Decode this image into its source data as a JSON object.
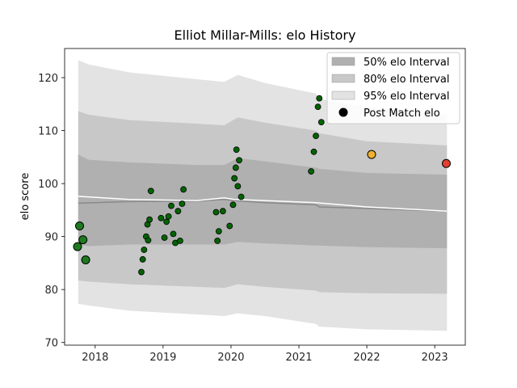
{
  "chart_data": {
    "type": "scatter",
    "title": "Elliot Millar-Mills: elo History",
    "xlabel": "",
    "ylabel": "elo score",
    "xlim": [
      2017.55,
      2023.45
    ],
    "ylim": [
      69.5,
      125.5
    ],
    "x_ticks": [
      2018,
      2019,
      2020,
      2021,
      2022,
      2023
    ],
    "y_ticks": [
      70,
      80,
      90,
      100,
      110,
      120
    ],
    "legend": {
      "position": "top-right",
      "entries": [
        {
          "label": "50% elo Interval",
          "color": "#b0b0b0"
        },
        {
          "label": "80% elo Interval",
          "color": "#c8c8c8"
        },
        {
          "label": "95% elo Interval",
          "color": "#e3e3e3"
        },
        {
          "label": "Post Match elo",
          "color": "#000000"
        }
      ]
    },
    "bands": {
      "x": [
        2017.75,
        2017.9,
        2018.5,
        2019.5,
        2019.9,
        2020.1,
        2020.5,
        2021.25,
        2021.3,
        2022.0,
        2023.18
      ],
      "p95": {
        "upper": [
          123.3,
          122.5,
          121.0,
          119.7,
          119.2,
          120.5,
          119.0,
          117.0,
          116.0,
          114.5,
          113.0
        ],
        "lower": [
          77.3,
          77.0,
          76.0,
          75.3,
          75.0,
          75.5,
          75.0,
          73.5,
          73.0,
          72.5,
          72.2
        ]
      },
      "p80": {
        "upper": [
          113.7,
          113.0,
          112.0,
          111.3,
          111.0,
          112.5,
          111.5,
          110.0,
          109.5,
          108.0,
          107.2
        ],
        "lower": [
          81.7,
          81.5,
          81.0,
          80.5,
          80.3,
          81.0,
          80.5,
          79.8,
          79.5,
          79.3,
          79.2
        ]
      },
      "p50": {
        "upper": [
          105.5,
          104.5,
          104.0,
          103.5,
          103.5,
          104.8,
          104.2,
          103.0,
          102.8,
          102.0,
          101.7
        ],
        "lower": [
          88.5,
          88.2,
          88.5,
          88.5,
          88.5,
          89.0,
          88.7,
          88.3,
          88.3,
          88.0,
          87.8
        ]
      }
    },
    "median": {
      "x": [
        2017.75,
        2018.5,
        2019.5,
        2019.9,
        2020.05,
        2020.5,
        2021.25,
        2021.3,
        2022.0,
        2023.18
      ],
      "y": [
        96.3,
        96.6,
        96.7,
        97.0,
        96.8,
        96.4,
        96.0,
        95.6,
        95.3,
        94.8
      ]
    },
    "mean_line": {
      "x": [
        2017.75,
        2018.5,
        2019.5,
        2019.9,
        2020.05,
        2020.5,
        2021.25,
        2022.0,
        2023.18
      ],
      "y": [
        97.6,
        97.0,
        96.8,
        97.3,
        97.0,
        96.8,
        96.4,
        95.6,
        94.8
      ]
    },
    "series": [
      {
        "name": "Post Match elo",
        "color": "#006400",
        "x": [
          2018.68,
          2018.7,
          2018.72,
          2018.75,
          2018.77,
          2018.78,
          2018.8,
          2018.82,
          2018.97,
          2019.02,
          2019.05,
          2019.08,
          2019.12,
          2019.15,
          2019.18,
          2019.22,
          2019.25,
          2019.28,
          2019.3,
          2019.78,
          2019.8,
          2019.82,
          2019.88,
          2019.98,
          2020.03,
          2020.05,
          2020.07,
          2020.08,
          2020.1,
          2020.12,
          2020.15,
          2021.18,
          2021.22,
          2021.25,
          2021.28,
          2021.3,
          2021.33
        ],
        "y": [
          83.3,
          85.7,
          87.5,
          90.0,
          92.3,
          89.3,
          93.2,
          98.6,
          93.5,
          89.8,
          92.8,
          93.8,
          95.8,
          90.5,
          88.8,
          94.8,
          89.2,
          96.2,
          98.9,
          94.6,
          89.2,
          91.0,
          94.8,
          92.0,
          96.0,
          101.0,
          103.0,
          106.4,
          99.5,
          104.4,
          97.5,
          102.3,
          106.0,
          109.0,
          114.5,
          116.1,
          111.6
        ]
      },
      {
        "name": "",
        "color": "#1e7a1e",
        "size": "large",
        "x": [
          2017.74,
          2017.77,
          2017.82,
          2017.86
        ],
        "y": [
          88.1,
          92.0,
          89.4,
          85.6
        ]
      },
      {
        "name": "",
        "color": "#f0b030",
        "size": "large",
        "x": [
          2022.07
        ],
        "y": [
          105.5
        ]
      },
      {
        "name": "",
        "color": "#e04030",
        "size": "large",
        "x": [
          2023.17
        ],
        "y": [
          103.8
        ]
      }
    ]
  }
}
